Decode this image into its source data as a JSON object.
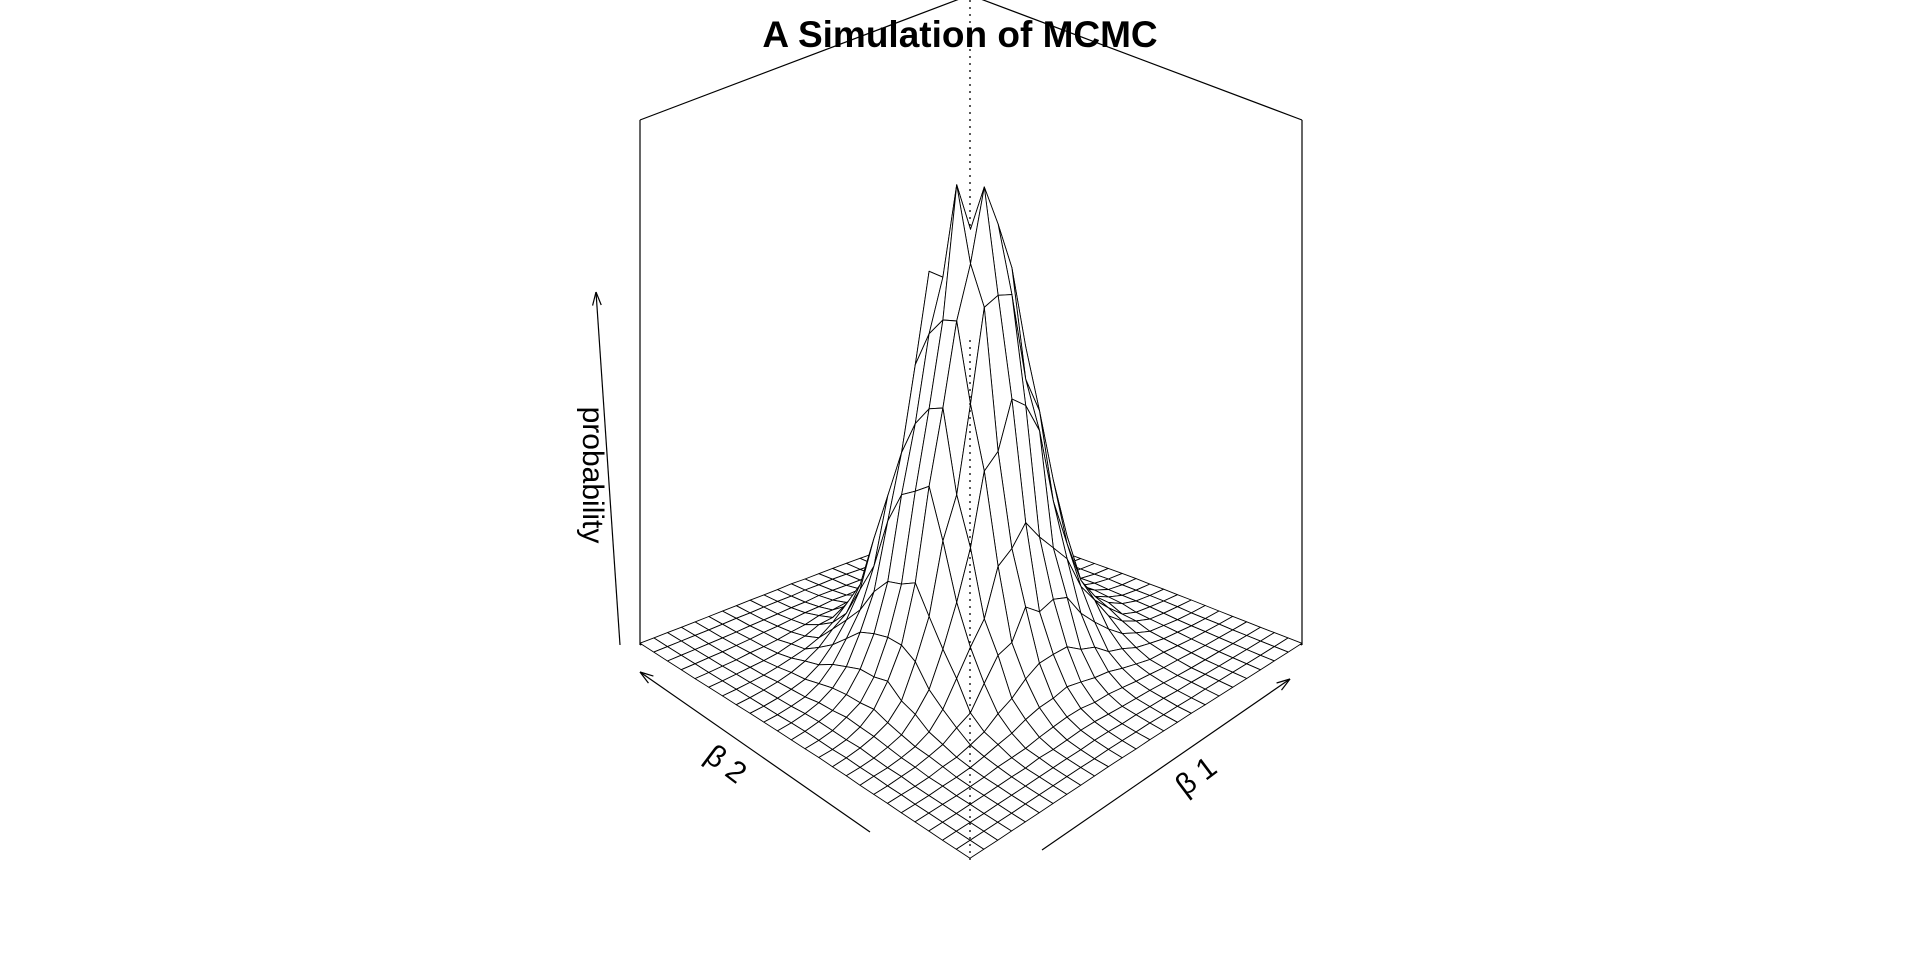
{
  "chart_data": {
    "type": "surface",
    "title": "A Simulation of MCMC",
    "xlabel": "β 1",
    "ylabel": "β 2",
    "zlabel": "probability",
    "grid": {
      "nx": 25,
      "ny": 25,
      "peak_relative_height": 1.0,
      "peak_location": "center",
      "shape": "unimodal bell (approx. bivariate normal), jagged near peak"
    },
    "axis_ticks": "none",
    "box": true
  }
}
